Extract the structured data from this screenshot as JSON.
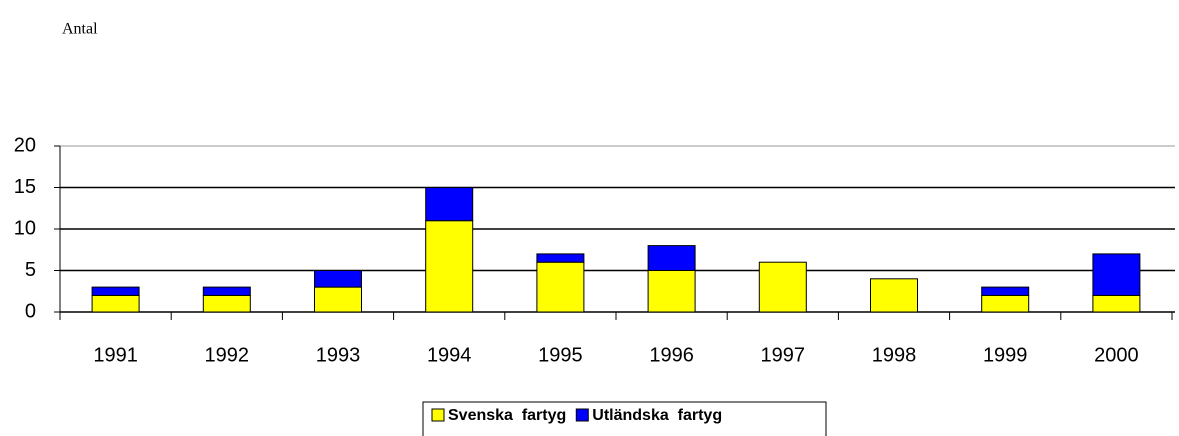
{
  "chart_data": {
    "type": "bar",
    "stacked": true,
    "ylabel": "Antal",
    "categories": [
      "1991",
      "1992",
      "1993",
      "1994",
      "1995",
      "1996",
      "1997",
      "1998",
      "1999",
      "2000"
    ],
    "series": [
      {
        "name": "Svenska  fartyg",
        "color": "#ffff00",
        "values": [
          2,
          2,
          3,
          11,
          6,
          5,
          6,
          4,
          2,
          2
        ]
      },
      {
        "name": "Utländska  fartyg",
        "color": "#0000ff",
        "values": [
          1,
          1,
          2,
          4,
          1,
          3,
          0,
          0,
          1,
          5
        ]
      }
    ],
    "ylim": [
      0,
      20
    ],
    "yticks": [
      0,
      5,
      10,
      15,
      20
    ],
    "grid": true,
    "legend": "bottom"
  }
}
